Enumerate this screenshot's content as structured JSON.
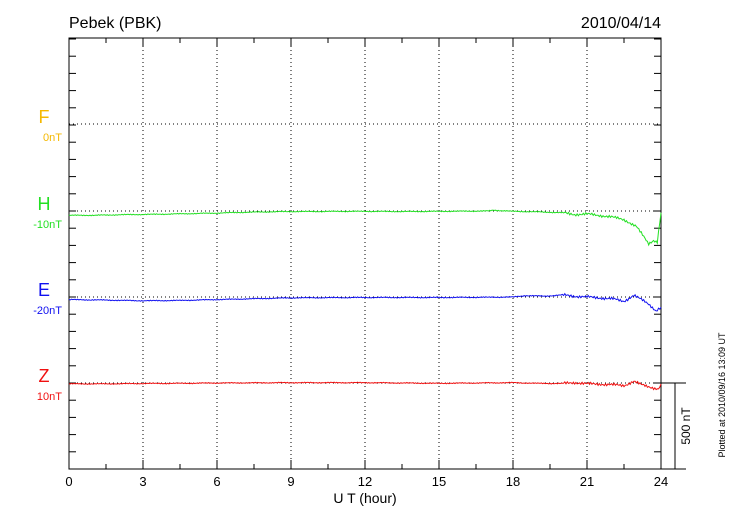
{
  "chart_data": {
    "type": "line",
    "title": "Pebek (PBK)",
    "date": "2010/04/14",
    "xlabel": "U T (hour)",
    "xlim": [
      0,
      24
    ],
    "xticks": [
      "0",
      "3",
      "6",
      "9",
      "12",
      "15",
      "18",
      "21",
      "24"
    ],
    "grid": true,
    "scale_bar_label": "500 nT",
    "footer": "Plotted at 2010/09/16 13:09 UT",
    "units": "nT",
    "series": [
      {
        "name": "F",
        "offset_label": "0nT",
        "color": "#f5b800",
        "points": []
      },
      {
        "name": "H",
        "offset_label": "-10nT",
        "color": "#22e022",
        "points": [
          [
            0,
            -25
          ],
          [
            1,
            -25
          ],
          [
            2,
            -22
          ],
          [
            3,
            -20
          ],
          [
            4,
            -18
          ],
          [
            5,
            -15
          ],
          [
            6,
            -12
          ],
          [
            7,
            -8
          ],
          [
            8,
            -5
          ],
          [
            9,
            -3
          ],
          [
            10,
            -3
          ],
          [
            11,
            -2
          ],
          [
            12,
            -2
          ],
          [
            13,
            -3
          ],
          [
            14,
            -3
          ],
          [
            15,
            -2
          ],
          [
            16,
            -1
          ],
          [
            17,
            0
          ],
          [
            17.2,
            5
          ],
          [
            18,
            -2
          ],
          [
            19,
            -5
          ],
          [
            20,
            -10
          ],
          [
            20.5,
            -20
          ],
          [
            21,
            -18
          ],
          [
            21.5,
            -25
          ],
          [
            22,
            -35
          ],
          [
            22.5,
            -50
          ],
          [
            23,
            -90
          ],
          [
            23.3,
            -150
          ],
          [
            23.5,
            -190
          ],
          [
            23.7,
            -170
          ],
          [
            23.85,
            -180
          ],
          [
            24,
            -10
          ]
        ]
      },
      {
        "name": "E",
        "offset_label": "-20nT",
        "color": "#1010f0",
        "points": [
          [
            0,
            -15
          ],
          [
            1.5,
            -18
          ],
          [
            3,
            -22
          ],
          [
            4.5,
            -20
          ],
          [
            6,
            -15
          ],
          [
            7.5,
            -10
          ],
          [
            9,
            -5
          ],
          [
            10.5,
            -4
          ],
          [
            12,
            -3
          ],
          [
            13.5,
            -3
          ],
          [
            15,
            -3
          ],
          [
            16.5,
            -2
          ],
          [
            18,
            0
          ],
          [
            18.5,
            8
          ],
          [
            19.3,
            5
          ],
          [
            20,
            12
          ],
          [
            20.5,
            5
          ],
          [
            21,
            0
          ],
          [
            21.5,
            -5
          ],
          [
            22,
            -10
          ],
          [
            22.5,
            -25
          ],
          [
            22.9,
            10
          ],
          [
            23.2,
            -15
          ],
          [
            23.5,
            -40
          ],
          [
            23.8,
            -80
          ],
          [
            24,
            -60
          ]
        ]
      },
      {
        "name": "Z",
        "offset_label": "10nT",
        "color": "#f01010",
        "points": [
          [
            0,
            -5
          ],
          [
            1.5,
            -5
          ],
          [
            3,
            -3
          ],
          [
            4.5,
            -2
          ],
          [
            6,
            0
          ],
          [
            7.5,
            1
          ],
          [
            9,
            2
          ],
          [
            10.5,
            2
          ],
          [
            12,
            2
          ],
          [
            13.5,
            0
          ],
          [
            15,
            -2
          ],
          [
            16.5,
            0
          ],
          [
            18,
            2
          ],
          [
            19,
            -2
          ],
          [
            20,
            -3
          ],
          [
            20.5,
            3
          ],
          [
            21,
            -5
          ],
          [
            21.5,
            -6
          ],
          [
            22,
            -10
          ],
          [
            22.5,
            -15
          ],
          [
            22.9,
            10
          ],
          [
            23.2,
            -10
          ],
          [
            23.6,
            -25
          ],
          [
            23.9,
            -35
          ],
          [
            24,
            -5
          ]
        ]
      }
    ]
  }
}
